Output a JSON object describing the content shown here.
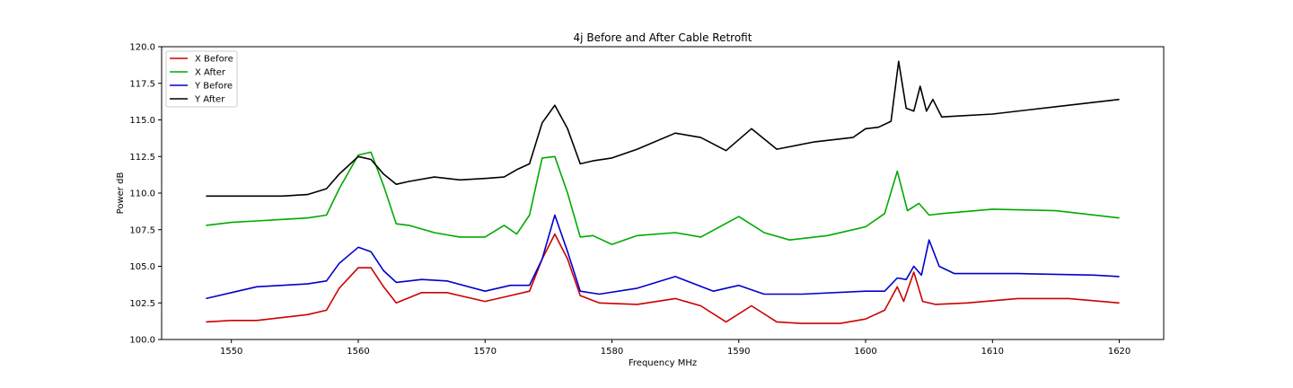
{
  "chart_data": {
    "type": "line",
    "title": "4j Before and After Cable Retrofit",
    "xlabel": "Frequency MHz",
    "ylabel": "Power dB",
    "xlim": [
      1544.5,
      1623.5
    ],
    "ylim": [
      100.0,
      120.0
    ],
    "xticks": [
      "1550",
      "1560",
      "1570",
      "1580",
      "1590",
      "1600",
      "1610",
      "1620"
    ],
    "yticks": [
      "100.0",
      "102.5",
      "105.0",
      "107.5",
      "110.0",
      "112.5",
      "115.0",
      "117.5",
      "120.0"
    ],
    "grid": false,
    "legend_position": "top-left",
    "series": [
      {
        "name": "X Before",
        "color": "#cc0000",
        "x": [
          1548,
          1550,
          1552,
          1554,
          1556,
          1557.5,
          1558.5,
          1560,
          1561,
          1562,
          1563,
          1565,
          1567,
          1570,
          1572,
          1573.5,
          1574.5,
          1575.5,
          1576.5,
          1577.5,
          1579,
          1582,
          1585,
          1587,
          1589,
          1591,
          1593,
          1595,
          1598,
          1600,
          1601.5,
          1602.5,
          1603,
          1603.8,
          1604.5,
          1605.5,
          1608,
          1612,
          1616,
          1620
        ],
        "y": [
          101.2,
          101.3,
          101.3,
          101.5,
          101.7,
          102.0,
          103.5,
          104.9,
          104.9,
          103.6,
          102.5,
          103.2,
          103.2,
          102.6,
          103.0,
          103.3,
          105.5,
          107.2,
          105.5,
          103.0,
          102.5,
          102.4,
          102.8,
          102.3,
          101.2,
          102.3,
          101.2,
          101.1,
          101.1,
          101.4,
          102.0,
          103.6,
          102.6,
          104.6,
          102.6,
          102.4,
          102.5,
          102.8,
          102.8,
          102.5
        ]
      },
      {
        "name": "X After",
        "color": "#00aa00",
        "x": [
          1548,
          1550,
          1552,
          1554,
          1556,
          1557.5,
          1558.5,
          1560,
          1561,
          1562,
          1563,
          1564,
          1566,
          1568,
          1570,
          1571.5,
          1572.5,
          1573.5,
          1574.5,
          1575.5,
          1576.5,
          1577.5,
          1578.5,
          1580,
          1582,
          1585,
          1587,
          1590,
          1592,
          1594,
          1597,
          1600,
          1601.5,
          1602.5,
          1603.3,
          1604.2,
          1605,
          1606,
          1610,
          1615,
          1620
        ],
        "y": [
          107.8,
          108.0,
          108.1,
          108.2,
          108.3,
          108.5,
          110.3,
          112.6,
          112.8,
          110.5,
          107.9,
          107.8,
          107.3,
          107.0,
          107.0,
          107.8,
          107.2,
          108.5,
          112.4,
          112.5,
          110.0,
          107.0,
          107.1,
          106.5,
          107.1,
          107.3,
          107.0,
          108.4,
          107.3,
          106.8,
          107.1,
          107.7,
          108.6,
          111.5,
          108.8,
          109.3,
          108.5,
          108.6,
          108.9,
          108.8,
          108.3
        ]
      },
      {
        "name": "Y Before",
        "color": "#0000cc",
        "x": [
          1548,
          1550,
          1552,
          1554,
          1556,
          1557.5,
          1558.5,
          1560,
          1561,
          1562,
          1563,
          1565,
          1567,
          1570,
          1572,
          1573.5,
          1574.5,
          1575.5,
          1576.5,
          1577.5,
          1579,
          1582,
          1585,
          1588,
          1590,
          1592,
          1595,
          1600,
          1601.5,
          1602.5,
          1603.2,
          1603.8,
          1604.4,
          1605,
          1605.8,
          1607,
          1612,
          1618,
          1620
        ],
        "y": [
          102.8,
          103.2,
          103.6,
          103.7,
          103.8,
          104.0,
          105.2,
          106.3,
          106.0,
          104.7,
          103.9,
          104.1,
          104.0,
          103.3,
          103.7,
          103.7,
          105.5,
          108.5,
          106.0,
          103.3,
          103.1,
          103.5,
          104.3,
          103.3,
          103.7,
          103.1,
          103.1,
          103.3,
          103.3,
          104.2,
          104.1,
          105.0,
          104.4,
          106.8,
          105.0,
          104.5,
          104.5,
          104.4,
          104.3
        ]
      },
      {
        "name": "Y After",
        "color": "#000000",
        "x": [
          1548,
          1550,
          1552,
          1554,
          1556,
          1557.5,
          1558.5,
          1560,
          1561,
          1562,
          1563,
          1564,
          1566,
          1568,
          1570,
          1571.5,
          1572.5,
          1573.5,
          1574.5,
          1575.5,
          1576.5,
          1577.5,
          1578.5,
          1580,
          1582,
          1585,
          1587,
          1589,
          1591,
          1593,
          1596,
          1599,
          1600,
          1601,
          1602,
          1602.6,
          1603.2,
          1603.8,
          1604.3,
          1604.8,
          1605.3,
          1606,
          1610,
          1615,
          1620
        ],
        "y": [
          109.8,
          109.8,
          109.8,
          109.8,
          109.9,
          110.3,
          111.3,
          112.5,
          112.3,
          111.3,
          110.6,
          110.8,
          111.1,
          110.9,
          111.0,
          111.1,
          111.6,
          112.0,
          114.8,
          116.0,
          114.4,
          112.0,
          112.2,
          112.4,
          113.0,
          114.1,
          113.8,
          112.9,
          114.4,
          113.0,
          113.5,
          113.8,
          114.4,
          114.5,
          114.9,
          119.0,
          115.8,
          115.6,
          117.3,
          115.6,
          116.4,
          115.2,
          115.4,
          115.9,
          116.4
        ]
      }
    ]
  }
}
